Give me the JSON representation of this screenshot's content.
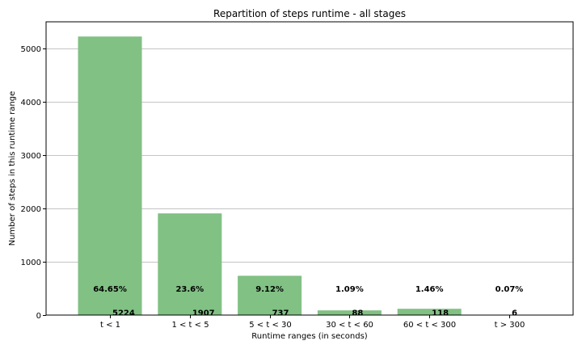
{
  "chart_data": {
    "type": "bar",
    "title": "Repartition of steps runtime - all stages",
    "xlabel": "Runtime ranges (in seconds)",
    "ylabel": "Number of steps in this runtime range",
    "categories": [
      "t < 1",
      "1 < t < 5",
      "5 < t < 30",
      "30 < t < 60",
      "60 < t < 300",
      "t > 300"
    ],
    "values": [
      5224,
      1907,
      737,
      88,
      118,
      6
    ],
    "percent_labels": [
      "64.65%",
      "23.6%",
      "9.12%",
      "1.09%",
      "1.46%",
      "0.07%"
    ],
    "count_labels": [
      "5224",
      "1907",
      "737",
      "88",
      "118",
      "6"
    ],
    "ylim": [
      0,
      5500
    ],
    "yticks": [
      0,
      1000,
      2000,
      3000,
      4000,
      5000
    ],
    "ytick_labels": [
      "0",
      "1000",
      "2000",
      "3000",
      "4000",
      "5000"
    ],
    "grid": "horizontal",
    "bar_color": "#81c184"
  }
}
